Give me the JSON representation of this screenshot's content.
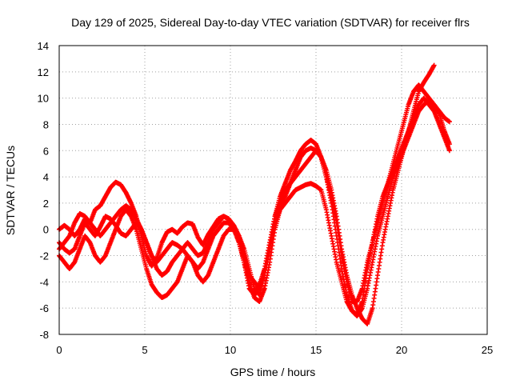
{
  "chart_data": {
    "type": "scatter",
    "title": "Day 129 of 2025, Sidereal Day-to-day VTEC variation (SDTVAR) for receiver flrs",
    "xlabel": "GPS time / hours",
    "ylabel": "SDTVAR / TECUs",
    "xlim": [
      0,
      25
    ],
    "ylim": [
      -8,
      14
    ],
    "xticks": [
      0,
      5,
      10,
      15,
      20,
      25
    ],
    "yticks": [
      -8,
      -6,
      -4,
      -2,
      0,
      2,
      4,
      6,
      8,
      10,
      12,
      14
    ],
    "grid": true,
    "marker": "+",
    "color": "#ff0000",
    "series": [
      {
        "x": [
          0.0,
          0.3,
          0.6,
          0.9,
          1.2,
          1.5,
          1.8,
          2.1,
          2.4,
          2.7,
          3.0,
          3.3,
          3.6,
          3.9,
          4.2,
          4.5,
          4.8,
          5.1,
          5.4,
          5.7,
          6.0,
          6.3,
          6.6,
          6.9,
          7.2,
          7.5,
          7.8,
          8.1,
          8.4,
          8.7,
          9.0,
          9.3,
          9.6,
          9.9,
          10.2,
          10.5,
          10.8,
          11.1,
          11.4,
          11.7,
          12.0,
          12.3,
          12.6,
          12.9,
          13.2,
          13.5,
          13.8,
          14.1,
          14.4,
          14.7,
          15.0,
          15.3,
          15.6,
          15.9,
          16.2,
          16.5,
          16.8,
          17.1,
          17.4,
          17.7,
          18.0,
          18.3,
          18.6,
          18.9,
          19.2,
          19.5,
          19.8,
          20.1,
          20.4,
          20.7,
          21.0,
          21.3,
          21.6,
          21.9,
          22.2,
          22.5,
          22.8
        ],
        "y": [
          -1.5,
          -1.0,
          -0.5,
          0.5,
          1.2,
          1.0,
          0.5,
          1.5,
          1.8,
          2.5,
          3.2,
          3.6,
          3.4,
          2.8,
          2.0,
          1.0,
          -0.5,
          -2.0,
          -2.8,
          -2.2,
          -1.0,
          -0.2,
          0.0,
          -0.3,
          0.2,
          0.5,
          0.4,
          -0.6,
          -1.2,
          -0.4,
          0.2,
          0.8,
          1.0,
          0.8,
          0.2,
          -0.8,
          -2.5,
          -4.5,
          -5.0,
          -4.2,
          -3.0,
          -1.0,
          1.0,
          2.5,
          3.5,
          4.5,
          5.2,
          6.0,
          6.5,
          6.8,
          6.5,
          5.5,
          4.0,
          2.0,
          -0.5,
          -3.0,
          -5.0,
          -6.2,
          -6.5,
          -5.5,
          -3.0,
          -1.0,
          1.0,
          2.5,
          3.5,
          4.5,
          5.5,
          6.5,
          7.5,
          8.5,
          9.5,
          10.0,
          9.5,
          9.0,
          8.0,
          7.0,
          6.0
        ]
      },
      {
        "x": [
          0.0,
          0.3,
          0.6,
          0.9,
          1.2,
          1.5,
          1.8,
          2.1,
          2.4,
          2.7,
          3.0,
          3.3,
          3.6,
          3.9,
          4.2,
          4.5,
          4.8,
          5.1,
          5.4,
          5.7,
          6.0,
          6.3,
          6.6,
          6.9,
          7.2,
          7.5,
          7.8,
          8.1,
          8.4,
          8.7,
          9.0,
          9.3,
          9.6,
          9.9,
          10.2,
          10.5,
          10.8,
          11.1,
          11.4,
          11.7,
          12.0,
          12.3,
          12.6,
          12.9,
          13.2,
          13.5,
          13.8,
          14.1,
          14.4,
          14.7,
          15.0,
          15.3,
          15.6,
          15.9,
          16.2,
          16.5,
          16.8,
          17.1,
          17.4,
          17.7,
          18.0,
          18.3,
          18.6,
          18.9,
          19.2,
          19.5,
          19.8,
          20.1,
          20.4,
          20.7,
          21.0,
          21.3,
          21.6,
          21.9,
          22.2,
          22.5,
          22.8
        ],
        "y": [
          -2.0,
          -2.5,
          -3.0,
          -2.5,
          -1.5,
          -0.5,
          -1.0,
          -2.0,
          -2.5,
          -2.0,
          -1.0,
          0.0,
          1.0,
          1.5,
          1.0,
          0.0,
          -1.5,
          -3.0,
          -4.2,
          -4.8,
          -5.2,
          -5.0,
          -4.5,
          -4.0,
          -3.0,
          -2.0,
          -2.5,
          -3.0,
          -2.5,
          -1.5,
          -0.5,
          0.0,
          0.5,
          0.5,
          0.0,
          -1.0,
          -2.5,
          -4.0,
          -5.2,
          -5.5,
          -4.5,
          -2.5,
          0.0,
          1.5,
          2.0,
          2.5,
          3.0,
          3.2,
          3.4,
          3.5,
          3.3,
          3.0,
          1.5,
          -0.5,
          -2.5,
          -4.0,
          -5.5,
          -6.2,
          -6.6,
          -6.0,
          -4.5,
          -2.5,
          -0.5,
          1.0,
          2.5,
          4.0,
          5.0,
          6.0,
          7.0,
          8.0,
          9.0,
          9.5,
          9.8,
          9.5,
          8.8,
          7.5,
          6.5
        ]
      },
      {
        "x": [
          0.0,
          0.3,
          0.6,
          0.9,
          1.2,
          1.5,
          1.8,
          2.1,
          2.4,
          2.7,
          3.0,
          3.3,
          3.6,
          3.9,
          4.2,
          4.5,
          4.8,
          5.1,
          5.4,
          5.7,
          6.0,
          6.3,
          6.6,
          6.9,
          7.2,
          7.5,
          7.8,
          8.1,
          8.4,
          8.7,
          9.0,
          9.3,
          9.6,
          9.9,
          10.2,
          10.5,
          10.8,
          11.1,
          11.4,
          11.7,
          12.0,
          12.3,
          12.6,
          12.9,
          13.2,
          13.5,
          13.8,
          14.1,
          14.4,
          14.7,
          15.0,
          15.3,
          15.6,
          15.9,
          16.2,
          16.5,
          16.8,
          17.1,
          17.4,
          17.7,
          18.0,
          18.3,
          18.6,
          18.9,
          19.2,
          19.5,
          19.8,
          20.1,
          20.4,
          20.7,
          21.0,
          21.3,
          21.6,
          21.9,
          22.2,
          22.5,
          22.8
        ],
        "y": [
          0.0,
          0.3,
          0.0,
          -0.5,
          0.0,
          0.8,
          0.5,
          0.0,
          -0.5,
          0.0,
          0.5,
          1.0,
          1.5,
          1.8,
          1.5,
          0.8,
          0.0,
          -1.0,
          -2.0,
          -3.0,
          -3.5,
          -3.2,
          -2.5,
          -2.0,
          -1.5,
          -1.0,
          -1.5,
          -2.0,
          -1.8,
          -1.0,
          0.0,
          0.5,
          1.0,
          0.8,
          0.3,
          -0.5,
          -1.5,
          -3.0,
          -4.5,
          -5.0,
          -3.5,
          -1.5,
          0.5,
          1.5,
          2.5,
          3.5,
          4.0,
          4.5,
          5.0,
          5.5,
          6.0,
          5.5,
          4.5,
          3.0,
          1.0,
          -1.5,
          -3.5,
          -5.0,
          -6.0,
          -6.8,
          -7.2,
          -6.0,
          -3.5,
          -1.0,
          1.0,
          3.0,
          4.5,
          6.0,
          7.5,
          9.0,
          10.5,
          11.2,
          11.8,
          12.5,
          null,
          null,
          null
        ]
      },
      {
        "x": [
          0.0,
          0.3,
          0.6,
          0.9,
          1.2,
          1.5,
          1.8,
          2.1,
          2.4,
          2.7,
          3.0,
          3.3,
          3.6,
          3.9,
          4.2,
          4.5,
          4.8,
          5.1,
          5.4,
          5.7,
          6.0,
          6.3,
          6.6,
          6.9,
          7.2,
          7.5,
          7.8,
          8.1,
          8.4,
          8.7,
          9.0,
          9.3,
          9.6,
          9.9,
          10.2,
          10.5,
          10.8,
          11.1,
          11.4,
          11.7,
          12.0,
          12.3,
          12.6,
          12.9,
          13.2,
          13.5,
          13.8,
          14.1,
          14.4,
          14.7,
          15.0,
          15.3,
          15.6,
          15.9,
          16.2,
          16.5,
          16.8,
          17.1,
          17.4,
          17.7,
          18.0,
          18.3,
          18.6,
          18.9,
          19.2,
          19.5,
          19.8,
          20.1,
          20.4,
          20.7,
          21.0,
          21.3,
          21.6,
          21.9,
          22.2,
          22.5,
          22.8
        ],
        "y": [
          -1.0,
          -1.5,
          -1.8,
          -1.5,
          -0.5,
          0.5,
          0.0,
          -0.5,
          0.2,
          1.0,
          0.8,
          0.3,
          -0.3,
          -0.5,
          0.0,
          0.5,
          0.0,
          -1.0,
          -2.0,
          -2.5,
          -2.0,
          -1.5,
          -1.0,
          -1.2,
          -1.5,
          -2.0,
          -2.5,
          -3.5,
          -4.0,
          -3.5,
          -2.5,
          -1.5,
          -0.5,
          0.0,
          0.0,
          -0.5,
          -2.0,
          -3.5,
          -4.0,
          -4.5,
          -3.0,
          -1.0,
          1.0,
          2.0,
          3.0,
          3.5,
          4.5,
          5.5,
          6.0,
          6.2,
          6.0,
          5.5,
          4.0,
          2.5,
          0.5,
          -2.0,
          -4.0,
          -5.5,
          -5.5,
          -4.5,
          -2.5,
          -1.0,
          0.5,
          2.0,
          3.5,
          5.0,
          6.5,
          8.0,
          9.5,
          10.5,
          11.0,
          10.5,
          10.0,
          9.5,
          9.0,
          8.5,
          8.2
        ]
      }
    ]
  }
}
